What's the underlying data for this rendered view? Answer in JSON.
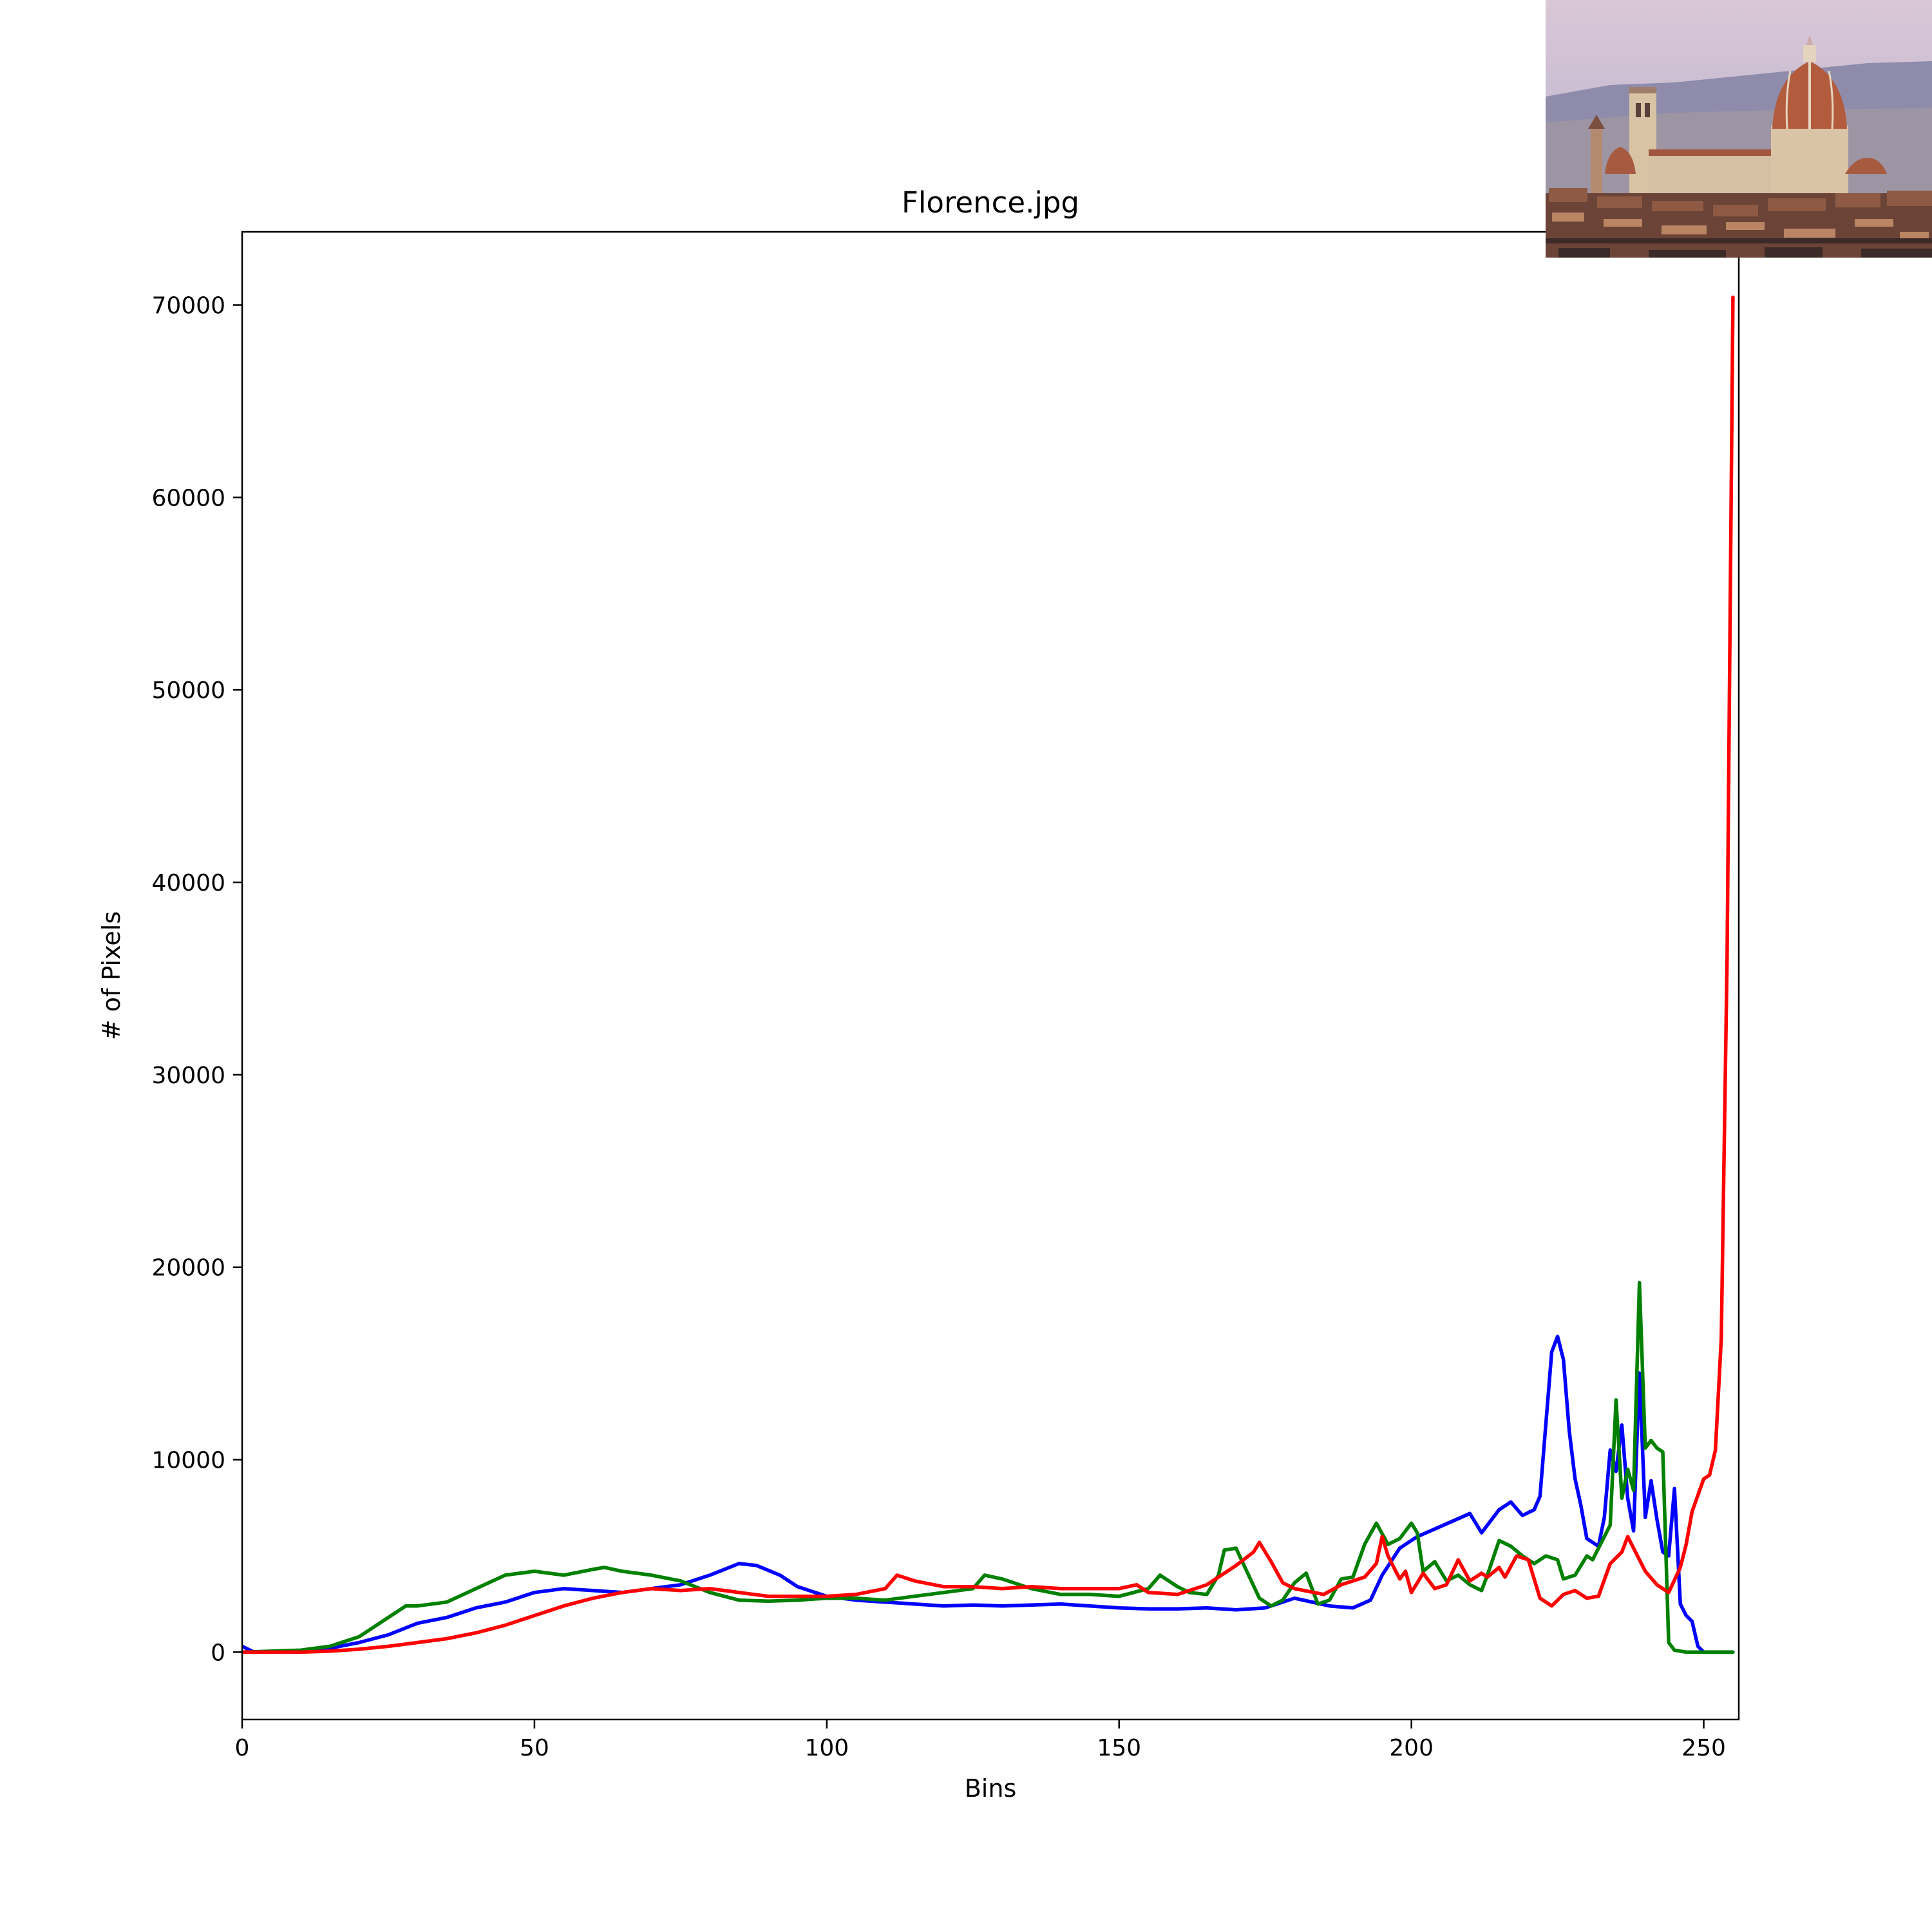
{
  "chart_data": {
    "type": "line",
    "title": "Florence.jpg",
    "xlabel": "Bins",
    "ylabel": "# of Pixels",
    "xlim": [
      0,
      256
    ],
    "ylim": [
      -3500,
      73800
    ],
    "xticks": [
      0,
      50,
      100,
      150,
      200,
      250
    ],
    "yticks": [
      0,
      10000,
      20000,
      30000,
      40000,
      50000,
      60000,
      70000
    ],
    "grid": false,
    "legend": "none",
    "series": [
      {
        "color": "#0000ff",
        "points": [
          [
            0,
            300
          ],
          [
            2,
            0
          ],
          [
            10,
            50
          ],
          [
            15,
            200
          ],
          [
            20,
            500
          ],
          [
            25,
            900
          ],
          [
            30,
            1500
          ],
          [
            35,
            1800
          ],
          [
            40,
            2300
          ],
          [
            45,
            2600
          ],
          [
            50,
            3100
          ],
          [
            55,
            3300
          ],
          [
            60,
            3200
          ],
          [
            65,
            3100
          ],
          [
            70,
            3300
          ],
          [
            75,
            3500
          ],
          [
            80,
            4000
          ],
          [
            85,
            4600
          ],
          [
            88,
            4500
          ],
          [
            92,
            4000
          ],
          [
            95,
            3400
          ],
          [
            100,
            2900
          ],
          [
            105,
            2700
          ],
          [
            110,
            2600
          ],
          [
            115,
            2500
          ],
          [
            120,
            2400
          ],
          [
            125,
            2450
          ],
          [
            130,
            2400
          ],
          [
            135,
            2450
          ],
          [
            140,
            2500
          ],
          [
            145,
            2400
          ],
          [
            150,
            2300
          ],
          [
            155,
            2250
          ],
          [
            160,
            2250
          ],
          [
            165,
            2300
          ],
          [
            170,
            2200
          ],
          [
            175,
            2300
          ],
          [
            180,
            2800
          ],
          [
            183,
            2600
          ],
          [
            186,
            2400
          ],
          [
            190,
            2300
          ],
          [
            193,
            2700
          ],
          [
            195,
            4000
          ],
          [
            198,
            5400
          ],
          [
            201,
            6000
          ],
          [
            204,
            6400
          ],
          [
            207,
            6800
          ],
          [
            210,
            7200
          ],
          [
            212,
            6200
          ],
          [
            215,
            7400
          ],
          [
            217,
            7800
          ],
          [
            219,
            7100
          ],
          [
            221,
            7400
          ],
          [
            222,
            8100
          ],
          [
            224,
            15600
          ],
          [
            225,
            16400
          ],
          [
            226,
            15200
          ],
          [
            227,
            11500
          ],
          [
            228,
            9000
          ],
          [
            229,
            7600
          ],
          [
            230,
            5900
          ],
          [
            232,
            5500
          ],
          [
            233,
            7000
          ],
          [
            234,
            10500
          ],
          [
            235,
            9400
          ],
          [
            236,
            11800
          ],
          [
            237,
            8000
          ],
          [
            238,
            6300
          ],
          [
            239,
            14500
          ],
          [
            240,
            7000
          ],
          [
            241,
            8900
          ],
          [
            242,
            6900
          ],
          [
            243,
            5200
          ],
          [
            244,
            5000
          ],
          [
            245,
            8500
          ],
          [
            246,
            2500
          ],
          [
            247,
            1900
          ],
          [
            248,
            1600
          ],
          [
            249,
            300
          ],
          [
            250,
            0
          ],
          [
            255,
            0
          ]
        ]
      },
      {
        "color": "#008000",
        "points": [
          [
            0,
            0
          ],
          [
            5,
            50
          ],
          [
            10,
            100
          ],
          [
            15,
            300
          ],
          [
            20,
            800
          ],
          [
            25,
            1800
          ],
          [
            28,
            2400
          ],
          [
            30,
            2400
          ],
          [
            35,
            2600
          ],
          [
            40,
            3300
          ],
          [
            45,
            4000
          ],
          [
            50,
            4200
          ],
          [
            55,
            4000
          ],
          [
            60,
            4300
          ],
          [
            62,
            4400
          ],
          [
            65,
            4200
          ],
          [
            70,
            4000
          ],
          [
            75,
            3700
          ],
          [
            80,
            3100
          ],
          [
            85,
            2700
          ],
          [
            90,
            2650
          ],
          [
            95,
            2700
          ],
          [
            100,
            2800
          ],
          [
            105,
            2800
          ],
          [
            110,
            2700
          ],
          [
            115,
            2900
          ],
          [
            120,
            3100
          ],
          [
            125,
            3300
          ],
          [
            127,
            4000
          ],
          [
            130,
            3800
          ],
          [
            135,
            3300
          ],
          [
            140,
            3000
          ],
          [
            145,
            3000
          ],
          [
            150,
            2900
          ],
          [
            155,
            3300
          ],
          [
            157,
            4000
          ],
          [
            160,
            3400
          ],
          [
            162,
            3100
          ],
          [
            165,
            3000
          ],
          [
            167,
            4000
          ],
          [
            168,
            5300
          ],
          [
            170,
            5400
          ],
          [
            172,
            4100
          ],
          [
            174,
            2800
          ],
          [
            176,
            2400
          ],
          [
            178,
            2700
          ],
          [
            180,
            3600
          ],
          [
            182,
            4100
          ],
          [
            184,
            2500
          ],
          [
            186,
            2700
          ],
          [
            188,
            3800
          ],
          [
            190,
            3900
          ],
          [
            192,
            5600
          ],
          [
            194,
            6700
          ],
          [
            196,
            5600
          ],
          [
            198,
            5900
          ],
          [
            200,
            6700
          ],
          [
            201,
            6200
          ],
          [
            202,
            4200
          ],
          [
            204,
            4700
          ],
          [
            206,
            3700
          ],
          [
            208,
            4000
          ],
          [
            210,
            3500
          ],
          [
            212,
            3200
          ],
          [
            213,
            4000
          ],
          [
            215,
            5800
          ],
          [
            217,
            5500
          ],
          [
            219,
            5000
          ],
          [
            221,
            4600
          ],
          [
            223,
            5000
          ],
          [
            225,
            4800
          ],
          [
            226,
            3800
          ],
          [
            228,
            4000
          ],
          [
            230,
            5000
          ],
          [
            231,
            4800
          ],
          [
            233,
            6000
          ],
          [
            234,
            6600
          ],
          [
            235,
            13100
          ],
          [
            236,
            8000
          ],
          [
            237,
            9500
          ],
          [
            238,
            8400
          ],
          [
            239,
            19200
          ],
          [
            240,
            10600
          ],
          [
            241,
            11000
          ],
          [
            242,
            10600
          ],
          [
            243,
            10400
          ],
          [
            244,
            500
          ],
          [
            245,
            100
          ],
          [
            247,
            0
          ],
          [
            255,
            0
          ]
        ]
      },
      {
        "color": "#ff0000",
        "points": [
          [
            0,
            0
          ],
          [
            10,
            0
          ],
          [
            15,
            50
          ],
          [
            20,
            150
          ],
          [
            25,
            300
          ],
          [
            30,
            500
          ],
          [
            35,
            700
          ],
          [
            40,
            1000
          ],
          [
            45,
            1400
          ],
          [
            50,
            1900
          ],
          [
            55,
            2400
          ],
          [
            60,
            2800
          ],
          [
            65,
            3100
          ],
          [
            70,
            3300
          ],
          [
            75,
            3200
          ],
          [
            80,
            3300
          ],
          [
            85,
            3100
          ],
          [
            90,
            2900
          ],
          [
            95,
            2900
          ],
          [
            100,
            2900
          ],
          [
            105,
            3000
          ],
          [
            110,
            3300
          ],
          [
            112,
            4000
          ],
          [
            115,
            3700
          ],
          [
            120,
            3400
          ],
          [
            125,
            3400
          ],
          [
            130,
            3300
          ],
          [
            135,
            3400
          ],
          [
            140,
            3300
          ],
          [
            145,
            3300
          ],
          [
            150,
            3300
          ],
          [
            153,
            3500
          ],
          [
            155,
            3100
          ],
          [
            160,
            3000
          ],
          [
            165,
            3500
          ],
          [
            170,
            4500
          ],
          [
            173,
            5200
          ],
          [
            174,
            5700
          ],
          [
            176,
            4700
          ],
          [
            178,
            3600
          ],
          [
            180,
            3300
          ],
          [
            185,
            3000
          ],
          [
            188,
            3500
          ],
          [
            192,
            3900
          ],
          [
            194,
            4600
          ],
          [
            195,
            6000
          ],
          [
            196,
            5000
          ],
          [
            198,
            3800
          ],
          [
            199,
            4200
          ],
          [
            200,
            3100
          ],
          [
            202,
            4100
          ],
          [
            204,
            3300
          ],
          [
            206,
            3500
          ],
          [
            208,
            4800
          ],
          [
            210,
            3700
          ],
          [
            212,
            4100
          ],
          [
            213,
            3900
          ],
          [
            215,
            4400
          ],
          [
            216,
            3900
          ],
          [
            218,
            5000
          ],
          [
            220,
            4800
          ],
          [
            222,
            2800
          ],
          [
            224,
            2400
          ],
          [
            226,
            3000
          ],
          [
            228,
            3200
          ],
          [
            230,
            2800
          ],
          [
            232,
            2900
          ],
          [
            234,
            4600
          ],
          [
            236,
            5200
          ],
          [
            237,
            6000
          ],
          [
            239,
            4800
          ],
          [
            240,
            4200
          ],
          [
            242,
            3500
          ],
          [
            244,
            3100
          ],
          [
            246,
            4400
          ],
          [
            247,
            5600
          ],
          [
            248,
            7300
          ],
          [
            250,
            9000
          ],
          [
            251,
            9200
          ],
          [
            252,
            10500
          ],
          [
            253,
            16300
          ],
          [
            254,
            36000
          ],
          [
            255,
            70400
          ]
        ]
      }
    ]
  },
  "inset_photo": {
    "description": "Florence.jpg",
    "colors": {
      "sky_top": "#d9c3d2",
      "sky_bottom": "#b7b1cf",
      "hills": "#8c8aa8",
      "dome": "#b05a3c",
      "stone": "#d9c4a6",
      "roofs": "#6b3b2c",
      "shadow": "#3a2c2a"
    }
  }
}
